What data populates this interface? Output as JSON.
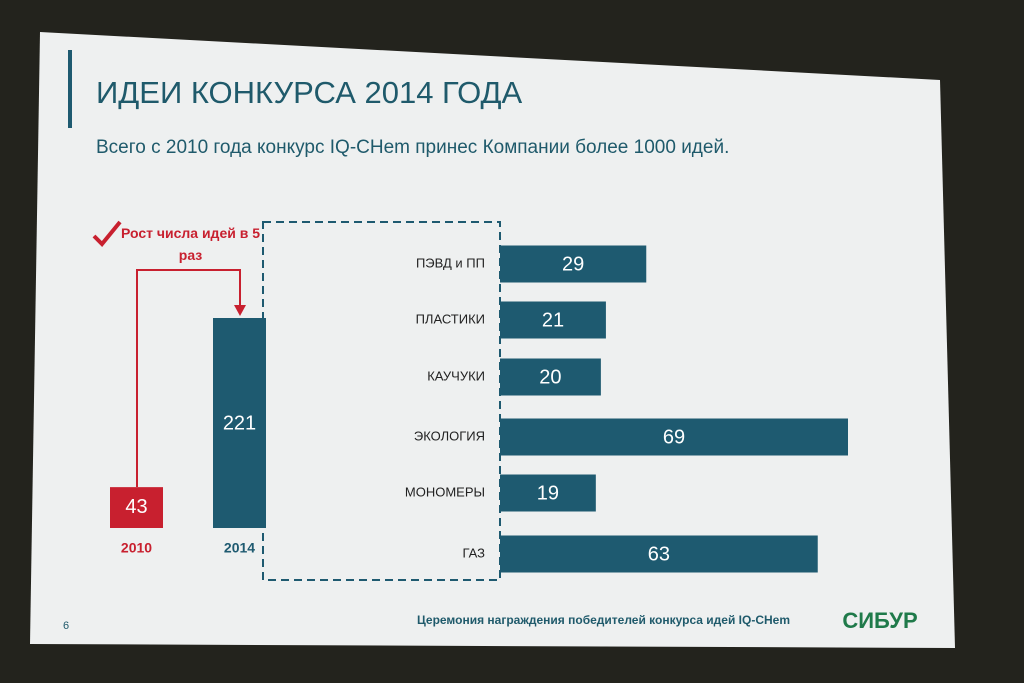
{
  "title": "ИДЕИ КОНКУРСА 2014 ГОДА",
  "subtitle": "Всего с 2010 года конкурс IQ-CHem принес Компании более 1000 идей.",
  "footer": "Церемония награждения победителей конкурса идей IQ-CHem",
  "logo": "СИБУР",
  "page_number": "6",
  "chart_data": [
    {
      "type": "bar",
      "annotation": "Рост числа идей в 5 раз",
      "categories": [
        "2010",
        "2014"
      ],
      "values": [
        43,
        221
      ],
      "colors": [
        "#c8202f",
        "#1e5a70"
      ],
      "label_colors": [
        "#c8202f",
        "#1e5a70"
      ]
    },
    {
      "type": "hbar",
      "categories": [
        "ПЭВД и ПП",
        "ПЛАСТИКИ",
        "КАУЧУКИ",
        "ЭКОЛОГИЯ",
        "МОНОМЕРЫ",
        "ГАЗ"
      ],
      "values": [
        29,
        21,
        20,
        69,
        19,
        63
      ],
      "color": "#1e5a70"
    }
  ]
}
